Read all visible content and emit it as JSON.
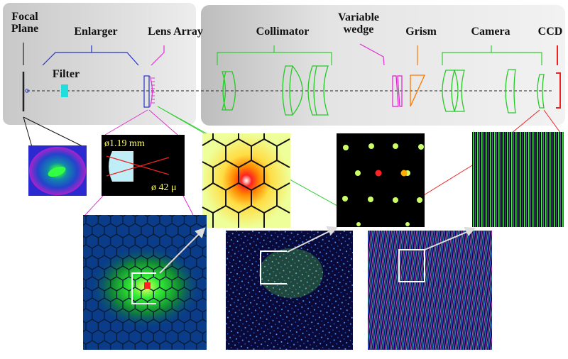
{
  "components": {
    "focal_plane": [
      "Focal",
      "Plane"
    ],
    "enlarger": "Enlarger",
    "filter": "Filter",
    "lens_array": "Lens Array",
    "collimator": "Collimator",
    "variable_wedge": [
      "Variable",
      "wedge"
    ],
    "grism": "Grism",
    "camera": "Camera",
    "ccd": "CCD"
  },
  "lenslet_inset": {
    "diameter_label": "ø1.19 mm",
    "fiber_label": "ø 42 μ"
  },
  "colors": {
    "enlarger_bracket": "#2233cc",
    "lens_array_bracket": "#dd33cc",
    "collimator_bracket": "#33cc33",
    "grism_bracket": "#ff7700",
    "ccd_bracket": "#ee2222",
    "filter": "#22dddd",
    "background_panel": "#e4e4e4"
  },
  "icons": [
    "lens-element-icon",
    "wedge-prism-icon",
    "grism-prism-icon",
    "ccd-detector-icon"
  ]
}
